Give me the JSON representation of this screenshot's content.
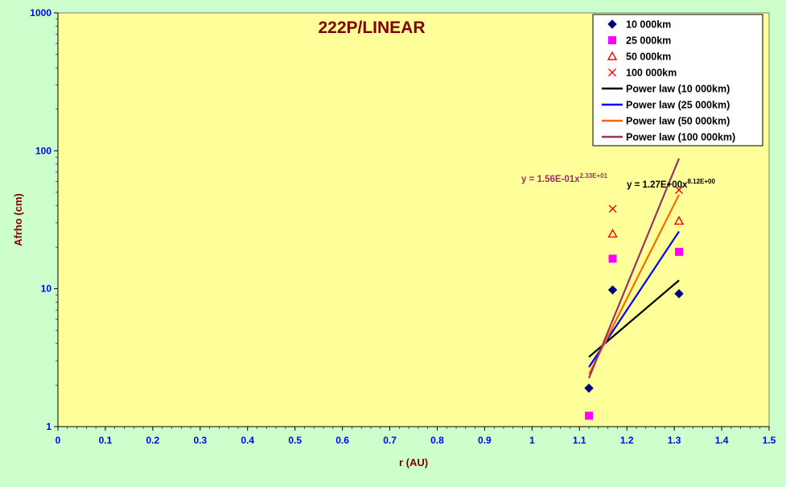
{
  "chart_data": {
    "type": "scatter",
    "title": "222P/LINEAR",
    "xlabel": "r (AU)",
    "ylabel": "Afrho (cm)",
    "x_scale": "linear",
    "y_scale": "log",
    "xlim": [
      0,
      1.5
    ],
    "ylim": [
      1,
      1000
    ],
    "x_ticks": [
      "0",
      "0.1",
      "0.2",
      "0.3",
      "0.4",
      "0.5",
      "0.6",
      "0.7",
      "0.8",
      "0.9",
      "1",
      "1.1",
      "1.2",
      "1.3",
      "1.4",
      "1.5"
    ],
    "y_ticks": [
      "1",
      "10",
      "100",
      "1000"
    ],
    "grid": false,
    "legend_position": "top-right",
    "series": [
      {
        "name": "10 000km",
        "marker": "diamond",
        "color": "#000080",
        "x": [
          1.12,
          1.17,
          1.31
        ],
        "y": [
          1.9,
          9.8,
          9.2
        ]
      },
      {
        "name": "25 000km",
        "marker": "square",
        "color": "#ff00ff",
        "x": [
          1.12,
          1.17,
          1.31
        ],
        "y": [
          1.2,
          16.5,
          18.5
        ]
      },
      {
        "name": "50 000km",
        "marker": "triangle",
        "color": "#ff0000",
        "x": [
          1.17,
          1.31
        ],
        "y": [
          25,
          31
        ]
      },
      {
        "name": "100 000km",
        "marker": "x",
        "color": "#ff0000",
        "x": [
          1.17,
          1.31
        ],
        "y": [
          38,
          52
        ]
      }
    ],
    "trendlines": [
      {
        "name": "Power law (10 000km)",
        "color": "#000000",
        "x": [
          1.12,
          1.31
        ],
        "y": [
          3.2,
          11.5
        ]
      },
      {
        "name": "Power law (25 000km)",
        "color": "#0000ff",
        "x": [
          1.12,
          1.31
        ],
        "y": [
          2.7,
          26
        ]
      },
      {
        "name": "Power law (50 000km)",
        "color": "#ff6600",
        "x": [
          1.12,
          1.31
        ],
        "y": [
          2.4,
          48
        ]
      },
      {
        "name": "Power law (100 000km)",
        "color": "#993366",
        "x": [
          1.12,
          1.31
        ],
        "y": [
          2.25,
          88
        ]
      }
    ],
    "annotations": [
      {
        "text": "y = 1.56E-01x",
        "sup": "2.33E+01",
        "color": "#993366"
      },
      {
        "text": "y = 1.27E+00x",
        "sup": "8.12E+00",
        "color": "#000000"
      }
    ],
    "colors": {
      "plot_bg": "#ffff99",
      "page_bg": "#ccffcc",
      "title": "#800000",
      "axis_label": "#800000",
      "tick_label": "#0000ff"
    }
  }
}
